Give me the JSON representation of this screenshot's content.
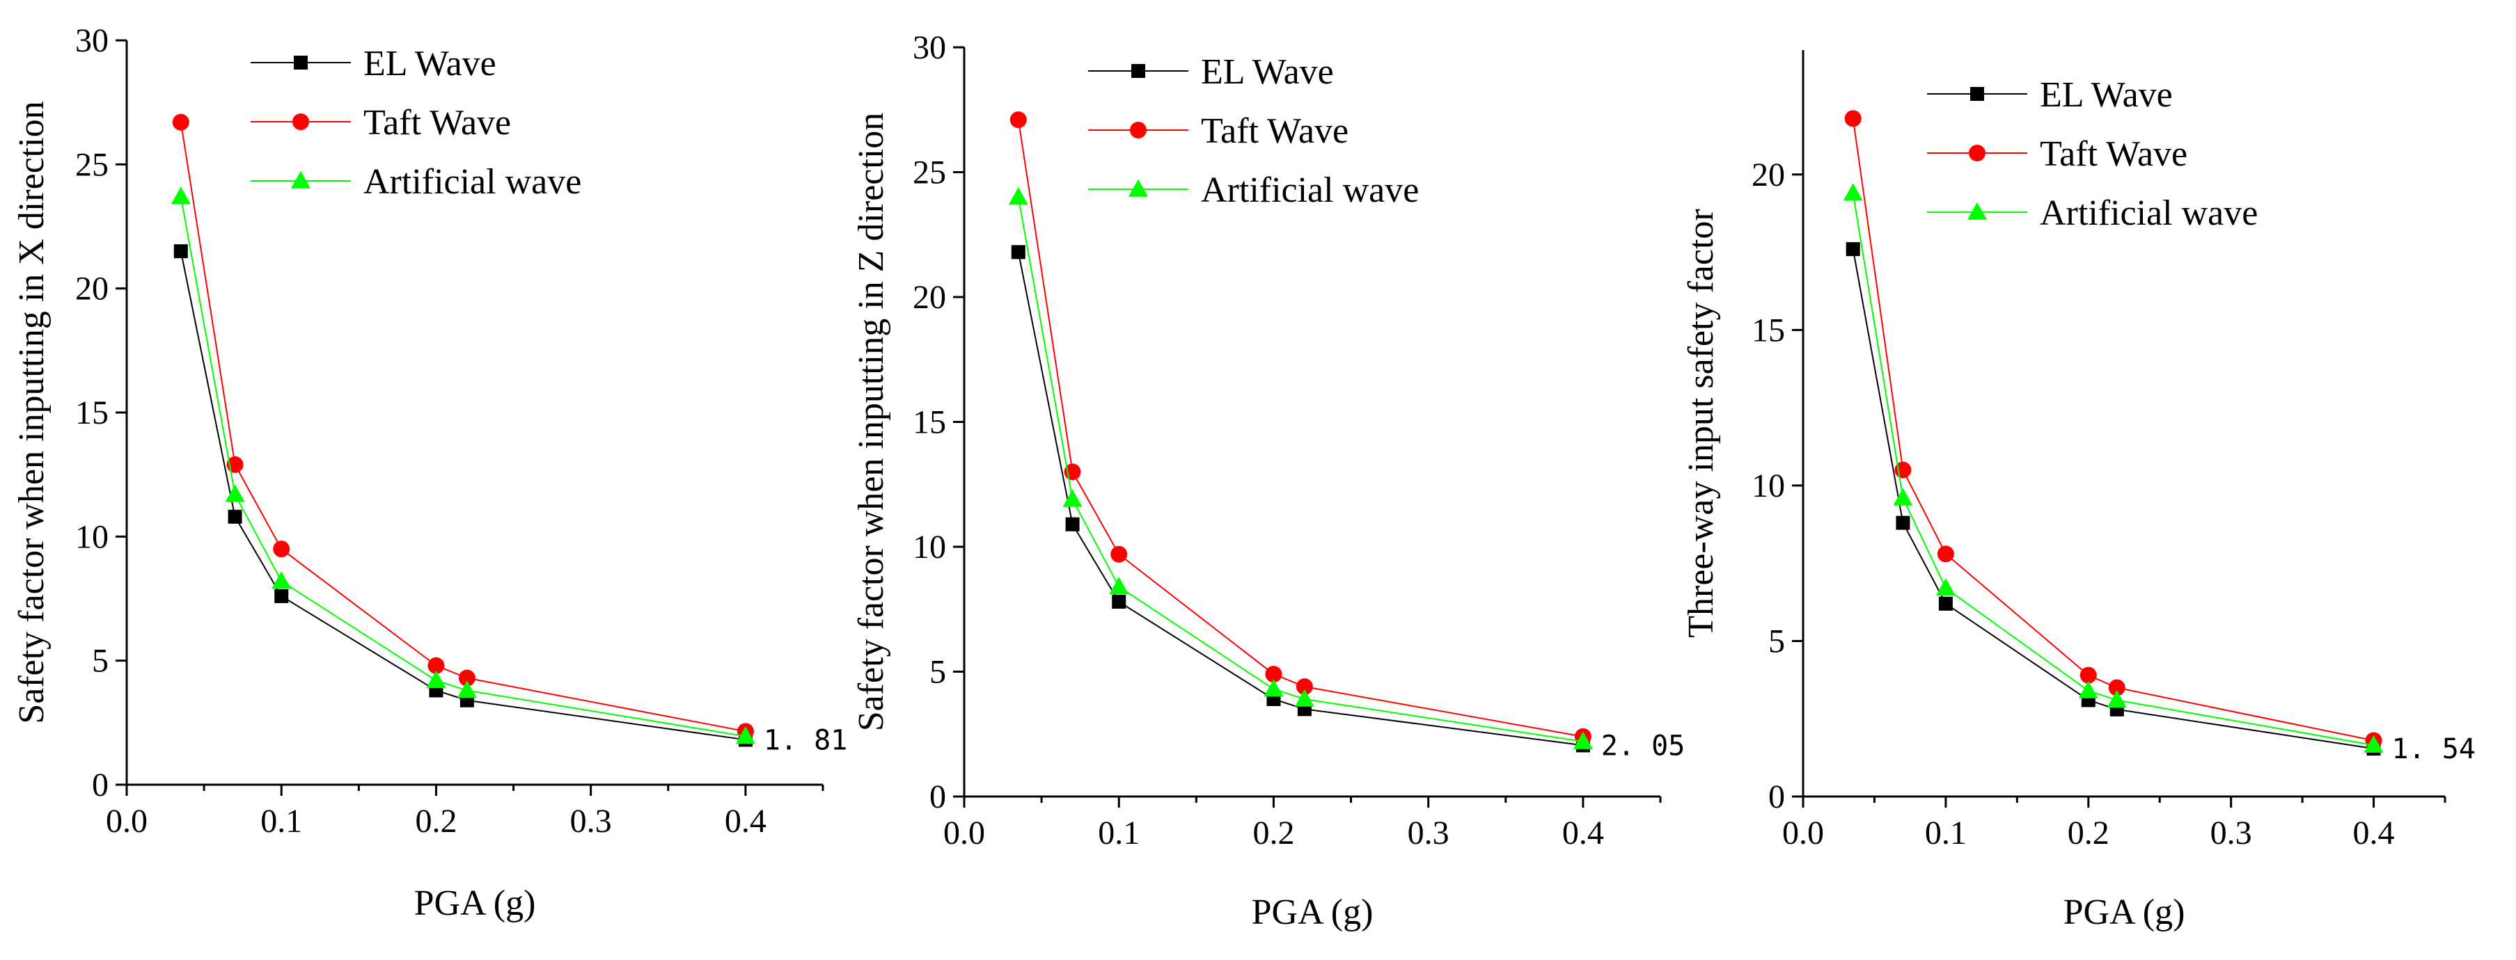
{
  "colors": {
    "el": "#000000",
    "taft": "#ff0000",
    "artificial": "#00ff00",
    "axis": "#000000"
  },
  "chart_data": [
    {
      "type": "line",
      "title": "",
      "xlabel": "PGA (g)",
      "ylabel": "Safety factor when inputting in X direction",
      "xlim": [
        0.0,
        0.45
      ],
      "ylim": [
        0,
        30
      ],
      "xticks": [
        0.0,
        0.1,
        0.2,
        0.3,
        0.4
      ],
      "xtick_labels": [
        "0.0",
        "0.1",
        "0.2",
        "0.3",
        "0.4"
      ],
      "yticks": [
        0,
        5,
        10,
        15,
        20,
        25,
        30
      ],
      "ytick_labels": [
        "0",
        "5",
        "10",
        "15",
        "20",
        "25",
        "30"
      ],
      "x": [
        0.035,
        0.07,
        0.1,
        0.2,
        0.22,
        0.4
      ],
      "series": [
        {
          "name": "EL Wave",
          "marker": "square",
          "color_key": "el",
          "values": [
            21.5,
            10.8,
            7.6,
            3.8,
            3.4,
            1.81
          ]
        },
        {
          "name": "Taft Wave",
          "marker": "circle",
          "color_key": "taft",
          "values": [
            26.7,
            12.9,
            9.5,
            4.8,
            4.3,
            2.15
          ]
        },
        {
          "name": "Artificial wave",
          "marker": "triangle",
          "color_key": "artificial",
          "values": [
            23.7,
            11.7,
            8.2,
            4.2,
            3.8,
            1.95
          ]
        }
      ],
      "legend_position": "top-left",
      "annotation": {
        "text": "1. 81",
        "x": 0.4,
        "y": 1.81
      }
    },
    {
      "type": "line",
      "title": "",
      "xlabel": "PGA (g)",
      "ylabel": "Safety factor when inputting in Z direction",
      "xlim": [
        0.0,
        0.45
      ],
      "ylim": [
        0,
        30
      ],
      "xticks": [
        0.0,
        0.1,
        0.2,
        0.3,
        0.4
      ],
      "xtick_labels": [
        "0.0",
        "0.1",
        "0.2",
        "0.3",
        "0.4"
      ],
      "yticks": [
        0,
        5,
        10,
        15,
        20,
        25,
        30
      ],
      "ytick_labels": [
        "0",
        "5",
        "10",
        "15",
        "20",
        "25",
        "30"
      ],
      "x": [
        0.035,
        0.07,
        0.1,
        0.2,
        0.22,
        0.4
      ],
      "series": [
        {
          "name": "EL Wave",
          "marker": "square",
          "color_key": "el",
          "values": [
            21.8,
            10.9,
            7.8,
            3.9,
            3.5,
            2.05
          ]
        },
        {
          "name": "Taft Wave",
          "marker": "circle",
          "color_key": "taft",
          "values": [
            27.1,
            13.0,
            9.7,
            4.9,
            4.4,
            2.4
          ]
        },
        {
          "name": "Artificial wave",
          "marker": "triangle",
          "color_key": "artificial",
          "values": [
            24.0,
            11.9,
            8.4,
            4.3,
            3.9,
            2.2
          ]
        }
      ],
      "legend_position": "top-left",
      "annotation": {
        "text": "2. 05",
        "x": 0.4,
        "y": 2.05
      }
    },
    {
      "type": "line",
      "title": "",
      "xlabel": "PGA (g)",
      "ylabel": "Three-way input safety factor",
      "xlim": [
        0.0,
        0.45
      ],
      "ylim": [
        0,
        24
      ],
      "xticks": [
        0.0,
        0.1,
        0.2,
        0.3,
        0.4
      ],
      "xtick_labels": [
        "0.0",
        "0.1",
        "0.2",
        "0.3",
        "0.4"
      ],
      "yticks": [
        0,
        5,
        10,
        15,
        20
      ],
      "ytick_labels": [
        "0",
        "5",
        "10",
        "15",
        "20"
      ],
      "x": [
        0.035,
        0.07,
        0.1,
        0.2,
        0.22,
        0.4
      ],
      "series": [
        {
          "name": "EL Wave",
          "marker": "square",
          "color_key": "el",
          "values": [
            17.6,
            8.8,
            6.2,
            3.1,
            2.8,
            1.54
          ]
        },
        {
          "name": "Taft Wave",
          "marker": "circle",
          "color_key": "taft",
          "values": [
            21.8,
            10.5,
            7.8,
            3.9,
            3.5,
            1.8
          ]
        },
        {
          "name": "Artificial wave",
          "marker": "triangle",
          "color_key": "artificial",
          "values": [
            19.4,
            9.6,
            6.7,
            3.4,
            3.1,
            1.65
          ]
        }
      ],
      "legend_position": "top-left",
      "annotation": {
        "text": "1. 54",
        "x": 0.4,
        "y": 1.54
      }
    }
  ]
}
